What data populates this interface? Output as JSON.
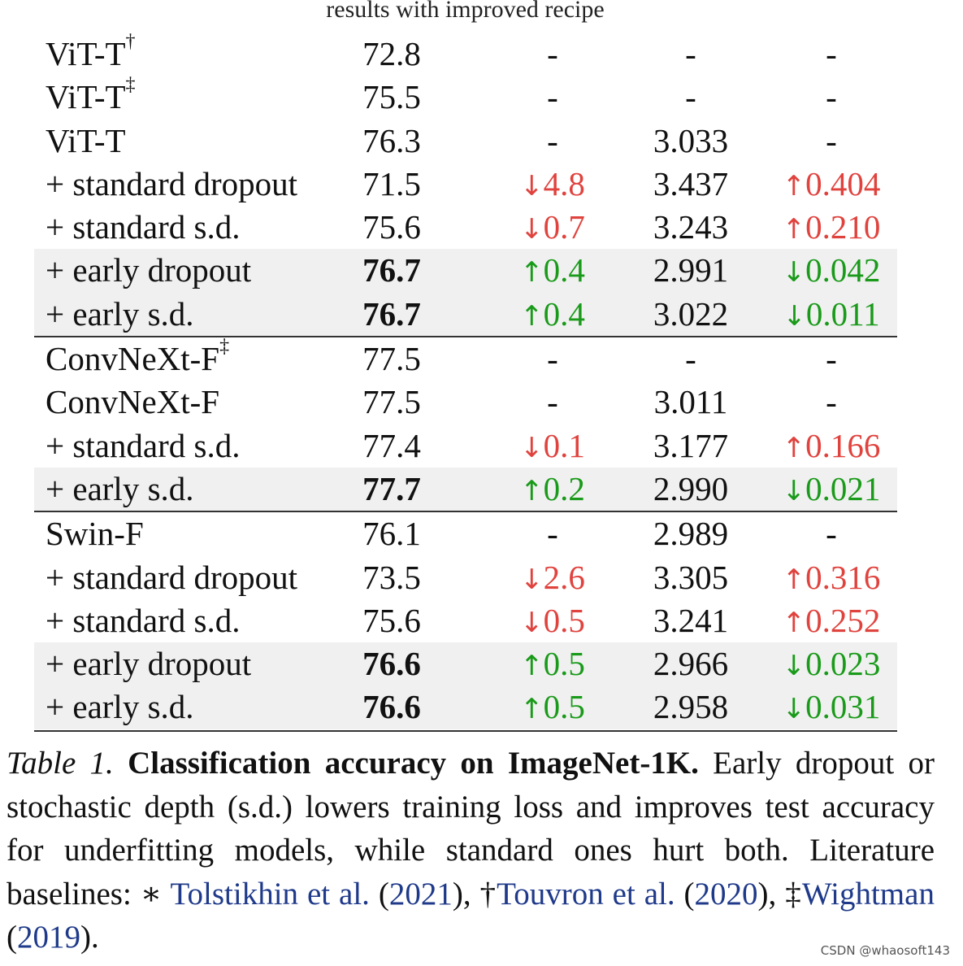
{
  "header": {
    "title": "results with improved recipe"
  },
  "colors": {
    "up_good": "#1a9a1a",
    "down_bad": "#e0433e",
    "citation": "#1f3a8a"
  },
  "rows": [
    {
      "model": "ViT-T",
      "sup": "†",
      "acc": "72.8",
      "bold": false,
      "dacc": {
        "dir": "",
        "val": "-"
      },
      "loss": "-",
      "dloss": {
        "dir": "",
        "val": "-"
      },
      "shaded": false,
      "group_start": false
    },
    {
      "model": "ViT-T",
      "sup": "‡",
      "acc": "75.5",
      "bold": false,
      "dacc": {
        "dir": "",
        "val": "-"
      },
      "loss": "-",
      "dloss": {
        "dir": "",
        "val": "-"
      },
      "shaded": false,
      "group_start": false
    },
    {
      "model": "ViT-T",
      "sup": "",
      "acc": "76.3",
      "bold": false,
      "dacc": {
        "dir": "",
        "val": "-"
      },
      "loss": "3.033",
      "dloss": {
        "dir": "",
        "val": "-"
      },
      "shaded": false,
      "group_start": false
    },
    {
      "model": "+ standard dropout",
      "sup": "",
      "acc": "71.5",
      "bold": false,
      "dacc": {
        "dir": "down",
        "val": "4.8"
      },
      "loss": "3.437",
      "dloss": {
        "dir": "up",
        "val": "0.404"
      },
      "shaded": false,
      "group_start": false
    },
    {
      "model": "+ standard s.d.",
      "sup": "",
      "acc": "75.6",
      "bold": false,
      "dacc": {
        "dir": "down",
        "val": "0.7"
      },
      "loss": "3.243",
      "dloss": {
        "dir": "up",
        "val": "0.210"
      },
      "shaded": false,
      "group_start": false
    },
    {
      "model": "+ early dropout",
      "sup": "",
      "acc": "76.7",
      "bold": true,
      "dacc": {
        "dir": "up",
        "val": "0.4"
      },
      "loss": "2.991",
      "dloss": {
        "dir": "down",
        "val": "0.042"
      },
      "shaded": true,
      "group_start": false
    },
    {
      "model": "+ early s.d.",
      "sup": "",
      "acc": "76.7",
      "bold": true,
      "dacc": {
        "dir": "up",
        "val": "0.4"
      },
      "loss": "3.022",
      "dloss": {
        "dir": "down",
        "val": "0.011"
      },
      "shaded": true,
      "group_start": false
    },
    {
      "model": "ConvNeXt-F",
      "sup": "‡",
      "acc": "77.5",
      "bold": false,
      "dacc": {
        "dir": "",
        "val": "-"
      },
      "loss": "-",
      "dloss": {
        "dir": "",
        "val": "-"
      },
      "shaded": false,
      "group_start": true
    },
    {
      "model": "ConvNeXt-F",
      "sup": "",
      "acc": "77.5",
      "bold": false,
      "dacc": {
        "dir": "",
        "val": "-"
      },
      "loss": "3.011",
      "dloss": {
        "dir": "",
        "val": "-"
      },
      "shaded": false,
      "group_start": false
    },
    {
      "model": "+ standard s.d.",
      "sup": "",
      "acc": "77.4",
      "bold": false,
      "dacc": {
        "dir": "down",
        "val": "0.1"
      },
      "loss": "3.177",
      "dloss": {
        "dir": "up",
        "val": "0.166"
      },
      "shaded": false,
      "group_start": false
    },
    {
      "model": "+ early s.d.",
      "sup": "",
      "acc": "77.7",
      "bold": true,
      "dacc": {
        "dir": "up",
        "val": "0.2"
      },
      "loss": "2.990",
      "dloss": {
        "dir": "down",
        "val": "0.021"
      },
      "shaded": true,
      "group_start": false
    },
    {
      "model": "Swin-F",
      "sup": "",
      "acc": "76.1",
      "bold": false,
      "dacc": {
        "dir": "",
        "val": "-"
      },
      "loss": "2.989",
      "dloss": {
        "dir": "",
        "val": "-"
      },
      "shaded": false,
      "group_start": true
    },
    {
      "model": "+ standard dropout",
      "sup": "",
      "acc": "73.5",
      "bold": false,
      "dacc": {
        "dir": "down",
        "val": "2.6"
      },
      "loss": "3.305",
      "dloss": {
        "dir": "up",
        "val": "0.316"
      },
      "shaded": false,
      "group_start": false
    },
    {
      "model": "+ standard s.d.",
      "sup": "",
      "acc": "75.6",
      "bold": false,
      "dacc": {
        "dir": "down",
        "val": "0.5"
      },
      "loss": "3.241",
      "dloss": {
        "dir": "up",
        "val": "0.252"
      },
      "shaded": false,
      "group_start": false
    },
    {
      "model": "+ early dropout",
      "sup": "",
      "acc": "76.6",
      "bold": true,
      "dacc": {
        "dir": "up",
        "val": "0.5"
      },
      "loss": "2.966",
      "dloss": {
        "dir": "down",
        "val": "0.023"
      },
      "shaded": true,
      "group_start": false
    },
    {
      "model": "+ early s.d.",
      "sup": "",
      "acc": "76.6",
      "bold": true,
      "dacc": {
        "dir": "up",
        "val": "0.5"
      },
      "loss": "2.958",
      "dloss": {
        "dir": "down",
        "val": "0.031"
      },
      "shaded": true,
      "group_start": false
    }
  ],
  "caption": {
    "label": "Table 1.",
    "title": "Classification accuracy on ImageNet-1K.",
    "text1": "Early dropout or stochastic depth (s.d.)  lowers training loss and improves test accuracy for underfitting models, while standard ones hurt both. Literature baselines: ∗ ",
    "cite1_author": "Tolstikhin et al.",
    "cite1_year": "2021",
    "sep1": "†",
    "cite2_author": "Touvron et al.",
    "cite2_year": "2020",
    "sep2": "‡",
    "cite3_author": "Wightman",
    "cite3_year": "2019"
  },
  "watermark": "CSDN @whaosoft143"
}
